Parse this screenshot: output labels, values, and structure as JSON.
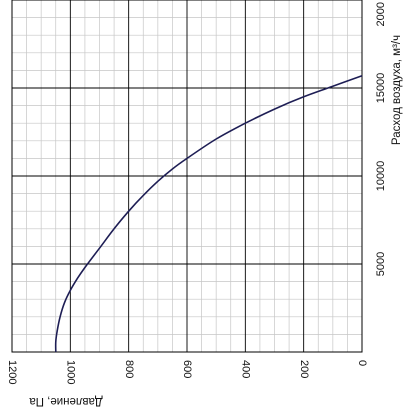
{
  "chart_data": {
    "type": "line",
    "orientation": "rotated-90",
    "xlabel": "Давление, Па",
    "ylabel": "Расход воздуха, м³/ч",
    "x_ticks": [
      "1200",
      "1000",
      "800",
      "600",
      "400",
      "200",
      "0"
    ],
    "y_ticks": [
      "5000",
      "10000",
      "15000",
      "2000"
    ],
    "xlim": [
      0,
      1200
    ],
    "ylim": [
      0,
      20000
    ],
    "grid": true,
    "series": [
      {
        "color": "#1e1e55",
        "points": [
          {
            "x": 1050,
            "y": 0
          },
          {
            "x": 1050,
            "y": 600
          },
          {
            "x": 1045,
            "y": 1200
          },
          {
            "x": 1035,
            "y": 2000
          },
          {
            "x": 1020,
            "y": 2800
          },
          {
            "x": 1000,
            "y": 3500
          },
          {
            "x": 975,
            "y": 4200
          },
          {
            "x": 950,
            "y": 4800
          },
          {
            "x": 900,
            "y": 5900
          },
          {
            "x": 850,
            "y": 7000
          },
          {
            "x": 800,
            "y": 8000
          },
          {
            "x": 750,
            "y": 8900
          },
          {
            "x": 700,
            "y": 9700
          },
          {
            "x": 650,
            "y": 10400
          },
          {
            "x": 600,
            "y": 11000
          },
          {
            "x": 500,
            "y": 12100
          },
          {
            "x": 400,
            "y": 13000
          },
          {
            "x": 300,
            "y": 13800
          },
          {
            "x": 200,
            "y": 14500
          },
          {
            "x": 100,
            "y": 15100
          },
          {
            "x": 0,
            "y": 15700
          }
        ]
      }
    ]
  }
}
